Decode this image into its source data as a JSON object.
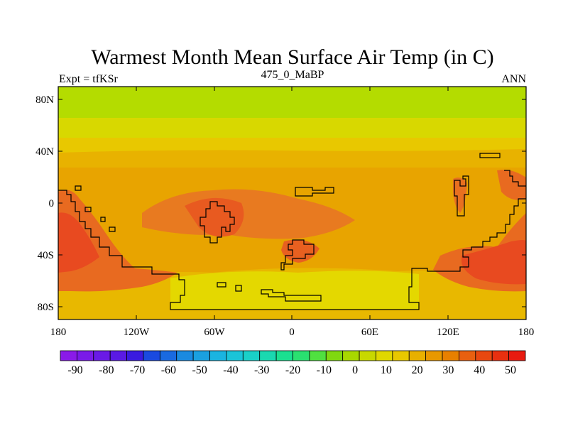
{
  "title": "Warmest Month Mean Surface Air Temp (in C)",
  "left_label": "Expt = tfKSr",
  "center_label": "475_0_MaBP",
  "right_label": "ANN",
  "lat_ticks": [
    "80N",
    "40N",
    "0",
    "40S",
    "80S"
  ],
  "lon_ticks": [
    "180",
    "120W",
    "60W",
    "0",
    "60E",
    "120E",
    "180"
  ],
  "colorbar": {
    "labels": [
      "-90",
      "-80",
      "-70",
      "-60",
      "-50",
      "-40",
      "-30",
      "-20",
      "-10",
      "0",
      "10",
      "20",
      "30",
      "40",
      "50"
    ],
    "colors": [
      "#8a1ae8",
      "#7a1ae8",
      "#6a1ae6",
      "#5a1ae4",
      "#3a1ae0",
      "#1a4ae0",
      "#1a6ae0",
      "#1a8ae0",
      "#1aa0e0",
      "#1ab4e0",
      "#1ac4d8",
      "#1ad0c8",
      "#1ad8b0",
      "#1ae090",
      "#2ae070",
      "#50e040",
      "#80d810",
      "#a8d800",
      "#c8d800",
      "#e0d800",
      "#e8c800",
      "#e8b000",
      "#e89800",
      "#e88000",
      "#e86010",
      "#e84810",
      "#e83010",
      "#e81a10"
    ]
  },
  "map": {
    "colors": {
      "polar_band": "#b4dc00",
      "upper_band": "#e4d800",
      "mid_band": "#e8c400",
      "warm_band": "#e8a400",
      "hot": "#e87420",
      "hotter": "#e85020",
      "south_cool": "#e8d800",
      "south_mid": "#e8b800"
    }
  }
}
